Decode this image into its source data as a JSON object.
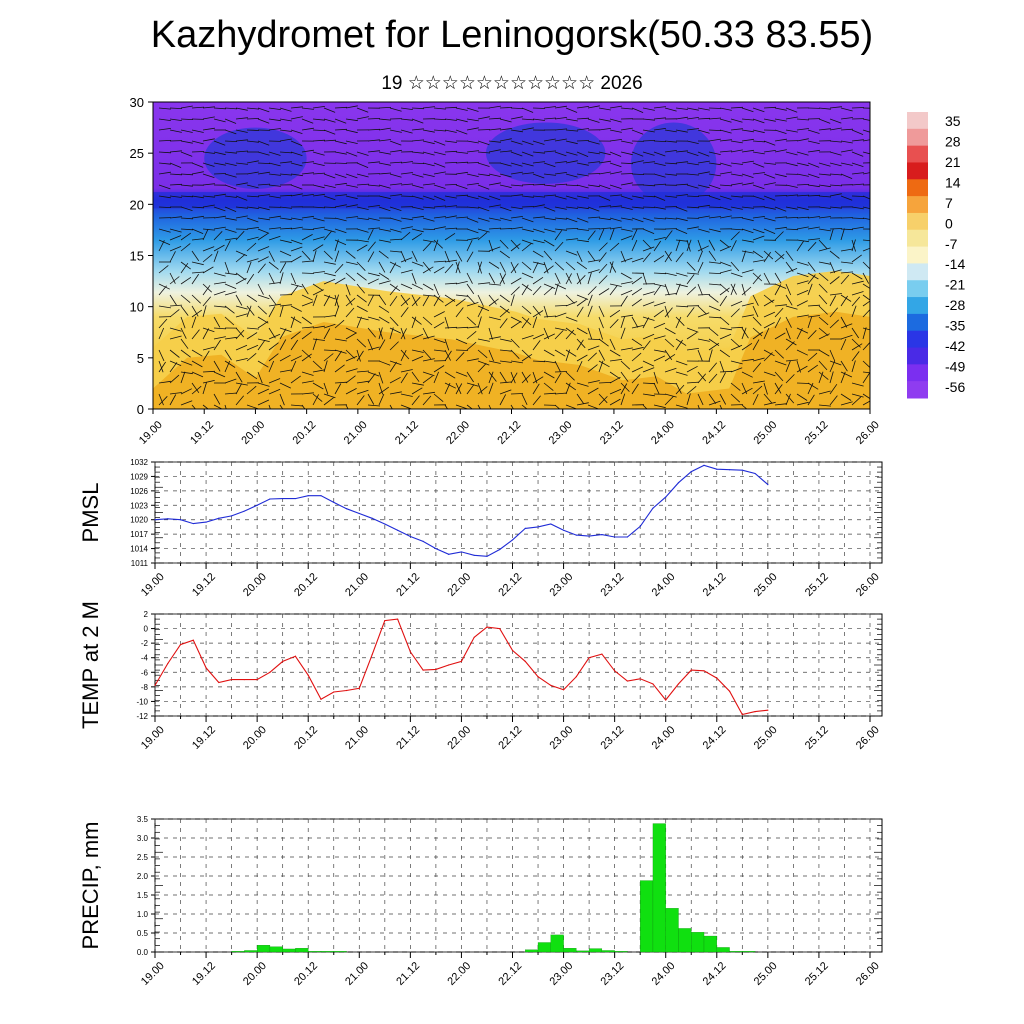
{
  "header": {
    "title": "Kazhydromet for Leninogorsk(50.33 83.55)",
    "subtitle": "19 ☆☆☆☆☆☆☆☆☆☆☆ 2026"
  },
  "time_labels": [
    "19.00",
    "19.12",
    "20.00",
    "20.12",
    "21.00",
    "21.12",
    "22.00",
    "22.12",
    "23.00",
    "23.12",
    "24.00",
    "24.12",
    "25.00",
    "25.12",
    "26.00"
  ],
  "colorbar": {
    "labels": [
      "35",
      "28",
      "21",
      "14",
      "7",
      "0",
      "-7",
      "-14",
      "-21",
      "-28",
      "-35",
      "-42",
      "-49",
      "-56"
    ],
    "colors": [
      "#f3c9c9",
      "#ef9a9a",
      "#e85050",
      "#d81d1d",
      "#ee6a12",
      "#f6a43c",
      "#f7d06a",
      "#f6e79a",
      "#fbf4c8",
      "#cfe9f3",
      "#79cdef",
      "#33a6e6",
      "#1c6be0",
      "#2a36e6",
      "#4a2ae6",
      "#7b2ff0",
      "#8f3cf0"
    ]
  },
  "chart_data": [
    {
      "type": "heatmap",
      "title": "",
      "ylabel": "",
      "ylim": [
        0,
        30
      ],
      "yticks": [
        0,
        5,
        10,
        15,
        20,
        25,
        30
      ],
      "xlim": [
        0,
        168
      ],
      "note_series": "color-filled temperature field with wind barbs"
    },
    {
      "type": "line",
      "ylabel": "PMSL",
      "ylim": [
        1011,
        1032
      ],
      "yticks": [
        1011,
        1014,
        1017,
        1020,
        1023,
        1026,
        1029,
        1032
      ],
      "color": "#1f2bd6",
      "x": [
        0,
        3,
        6,
        9,
        12,
        15,
        18,
        21,
        24,
        27,
        30,
        33,
        36,
        39,
        42,
        45,
        48,
        51,
        54,
        57,
        60,
        63,
        66,
        69,
        72,
        75,
        78,
        81,
        84,
        87,
        90,
        93,
        96,
        99,
        102,
        105,
        108,
        111,
        114,
        117,
        120,
        123,
        126,
        129,
        132,
        135,
        138,
        141,
        144
      ],
      "values": [
        1020.0,
        1020.2,
        1020.0,
        1019.2,
        1019.5,
        1020.3,
        1020.8,
        1021.8,
        1023.0,
        1024.3,
        1024.4,
        1024.4,
        1025.0,
        1025.0,
        1023.6,
        1022.3,
        1021.3,
        1020.3,
        1019.1,
        1017.8,
        1016.5,
        1015.5,
        1014.0,
        1012.8,
        1013.3,
        1012.6,
        1012.4,
        1013.8,
        1015.8,
        1018.2,
        1018.5,
        1019.1,
        1017.8,
        1016.8,
        1016.6,
        1016.9,
        1016.4,
        1016.4,
        1018.6,
        1022.4,
        1024.7,
        1027.7,
        1030.0,
        1031.3,
        1030.5,
        1030.4,
        1030.3,
        1029.6,
        1027.3
      ]
    },
    {
      "type": "line",
      "ylabel": "TEMP at 2 M",
      "ylim": [
        -12,
        2
      ],
      "yticks": [
        -12,
        -10,
        -8,
        -6,
        -4,
        -2,
        0,
        2
      ],
      "color": "#e01010",
      "x": [
        0,
        3,
        6,
        9,
        12,
        15,
        18,
        21,
        24,
        27,
        30,
        33,
        36,
        39,
        42,
        45,
        48,
        51,
        54,
        57,
        60,
        63,
        66,
        69,
        72,
        75,
        78,
        81,
        84,
        87,
        90,
        93,
        96,
        99,
        102,
        105,
        108,
        111,
        114,
        117,
        120,
        123,
        126,
        129,
        132,
        135,
        138,
        141,
        144
      ],
      "values": [
        -7.8,
        -4.8,
        -2.2,
        -1.6,
        -5.4,
        -7.4,
        -7.0,
        -7.0,
        -7.0,
        -6.0,
        -4.5,
        -3.8,
        -6.4,
        -9.7,
        -8.7,
        -8.5,
        -8.2,
        -3.6,
        1.1,
        1.3,
        -3.2,
        -5.7,
        -5.6,
        -5.0,
        -4.5,
        -1.2,
        0.2,
        0.0,
        -3.0,
        -4.5,
        -6.6,
        -7.8,
        -8.4,
        -6.6,
        -4.0,
        -3.5,
        -5.8,
        -7.2,
        -6.9,
        -7.6,
        -9.8,
        -7.6,
        -5.7,
        -5.8,
        -6.8,
        -8.6,
        -11.8,
        -11.4,
        -11.2
      ]
    },
    {
      "type": "bar",
      "ylabel": "PRECIP, mm",
      "ylim": [
        0,
        3.5
      ],
      "yticks": [
        0.0,
        0.5,
        1.0,
        1.5,
        2.0,
        2.5,
        3.0,
        3.5
      ],
      "color": "#10e010",
      "x": [
        18,
        21,
        24,
        27,
        30,
        33,
        36,
        39,
        42,
        87,
        90,
        93,
        96,
        99,
        102,
        105,
        108,
        114,
        117,
        120,
        123,
        126,
        129,
        132,
        135,
        138
      ],
      "values": [
        0.02,
        0.04,
        0.18,
        0.14,
        0.08,
        0.1,
        0.02,
        0.02,
        0.02,
        0.06,
        0.25,
        0.45,
        0.1,
        0.03,
        0.09,
        0.04,
        0.02,
        1.88,
        3.38,
        1.15,
        0.62,
        0.52,
        0.42,
        0.12,
        0.02,
        0.02
      ]
    }
  ]
}
